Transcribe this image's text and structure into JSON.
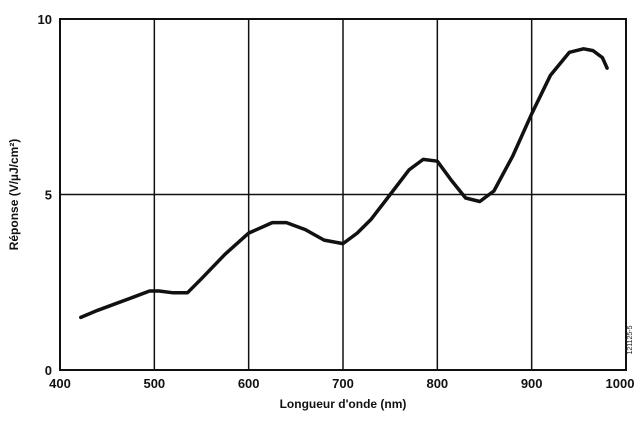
{
  "chart_data": {
    "type": "line",
    "xlabel": "Longueur d'onde (nm)",
    "ylabel": "Réponse (V/µJ/cm²)",
    "xlim": [
      400,
      1000
    ],
    "ylim": [
      0,
      10
    ],
    "x_ticks": [
      "400",
      "500",
      "600",
      "700",
      "800",
      "900",
      "1000"
    ],
    "y_ticks": [
      "0",
      "5",
      "10"
    ],
    "grid": true,
    "figure_code": "121125-5",
    "series": [
      {
        "x": [
          422,
          440,
          460,
          480,
          495,
          505,
          520,
          535,
          550,
          575,
          600,
          625,
          640,
          660,
          680,
          700,
          715,
          730,
          750,
          770,
          785,
          800,
          815,
          830,
          845,
          860,
          880,
          900,
          920,
          940,
          955,
          965,
          975,
          980
        ],
        "y": [
          1.5,
          1.7,
          1.9,
          2.1,
          2.25,
          2.25,
          2.2,
          2.2,
          2.6,
          3.3,
          3.9,
          4.2,
          4.2,
          4.0,
          3.7,
          3.6,
          3.9,
          4.3,
          5.0,
          5.7,
          6.0,
          5.95,
          5.4,
          4.9,
          4.8,
          5.1,
          6.1,
          7.3,
          8.4,
          9.05,
          9.15,
          9.1,
          8.9,
          8.6
        ]
      }
    ]
  }
}
